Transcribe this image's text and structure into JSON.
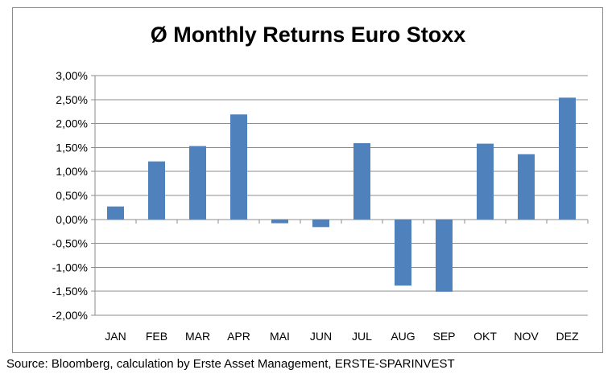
{
  "chart_data": {
    "type": "bar",
    "title": "Ø Monthly Returns Euro Stoxx",
    "xlabel": "",
    "ylabel": "",
    "categories": [
      "JAN",
      "FEB",
      "MAR",
      "APR",
      "MAI",
      "JUN",
      "JUL",
      "AUG",
      "SEP",
      "OKT",
      "NOV",
      "DEZ"
    ],
    "values": [
      0.27,
      1.21,
      1.53,
      2.19,
      -0.08,
      -0.16,
      1.59,
      -1.38,
      -1.51,
      1.58,
      1.36,
      2.54
    ],
    "value_unit": "%",
    "ylim": [
      -2.0,
      3.0
    ],
    "yticks": [
      3.0,
      2.5,
      2.0,
      1.5,
      1.0,
      0.5,
      0.0,
      -0.5,
      -1.0,
      -1.5,
      -2.0
    ],
    "ytick_labels": [
      "3,00%",
      "2,50%",
      "2,00%",
      "1,50%",
      "1,00%",
      "0,50%",
      "0,00%",
      "-0,50%",
      "-1,00%",
      "-1,50%",
      "-2,00%"
    ],
    "grid": true,
    "legend": "none",
    "bar_color": "#4f81bd",
    "gridline_color": "#8c8c8c"
  },
  "source": "Source: Bloomberg, calculation by Erste Asset Management, ERSTE-SPARINVEST"
}
